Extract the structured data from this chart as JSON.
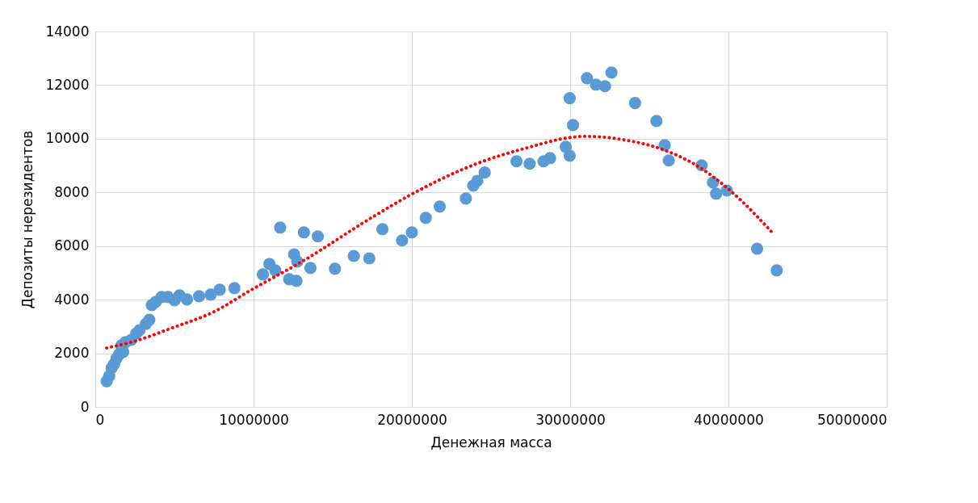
{
  "chart_data": {
    "type": "scatter",
    "xlabel": "Денежная масса",
    "ylabel": "Депозиты нерезидентов",
    "xlim": [
      0,
      50000000
    ],
    "xticks": [
      0,
      10000000,
      20000000,
      30000000,
      40000000,
      50000000
    ],
    "ylim": [
      0,
      14000
    ],
    "yticks": [
      0,
      2000,
      4000,
      6000,
      8000,
      10000,
      12000,
      14000
    ],
    "grid": true,
    "marker": "circle",
    "series": [
      {
        "color": "#5b9bd5",
        "x": [
          720000,
          880000,
          1030000,
          1190000,
          1340000,
          1500000,
          1760000,
          1650000,
          1900000,
          2270000,
          2580000,
          2790000,
          3200000,
          3410000,
          3570000,
          3820000,
          4190000,
          4600000,
          5010000,
          5320000,
          5790000,
          6560000,
          7290000,
          7860000,
          8790000,
          10590000,
          11000000,
          11370000,
          11680000,
          12250000,
          12710000,
          12560000,
          12760000,
          13180000,
          13590000,
          14060000,
          15140000,
          16330000,
          17310000,
          18140000,
          19380000,
          20000000,
          20880000,
          21760000,
          23410000,
          23880000,
          24130000,
          24600000,
          26610000,
          27440000,
          28320000,
          28730000,
          29720000,
          29970000,
          29970000,
          30180000,
          31060000,
          31630000,
          32200000,
          32610000,
          34100000,
          35450000,
          35970000,
          36230000,
          38300000,
          39020000,
          39220000,
          39900000,
          41810000,
          43050000
        ],
        "values": [
          960,
          1150,
          1450,
          1600,
          1810,
          1960,
          2050,
          2290,
          2410,
          2500,
          2740,
          2860,
          3100,
          3250,
          3800,
          3920,
          4100,
          4100,
          3980,
          4160,
          4010,
          4130,
          4190,
          4370,
          4430,
          4940,
          5330,
          5090,
          6690,
          4760,
          4700,
          5690,
          5420,
          6510,
          5180,
          6360,
          5150,
          5630,
          5540,
          6630,
          6210,
          6510,
          7050,
          7470,
          7770,
          8250,
          8430,
          8740,
          9160,
          9070,
          9160,
          9280,
          9700,
          9370,
          11510,
          10510,
          12260,
          12020,
          11960,
          12470,
          11330,
          10660,
          9760,
          9190,
          9010,
          8370,
          7950,
          8070,
          5900,
          5090
        ]
      },
      {
        "type": "line",
        "color": "#ff0000",
        "line_style": "dotted",
        "marker": "none",
        "x": [
          720000,
          2430000,
          4860000,
          7500000,
          9870000,
          13000000,
          17600000,
          19950000,
          24000000,
          27500000,
          29800000,
          30960000,
          33600000,
          35800000,
          38300000,
          40050000,
          42900000
        ],
        "values": [
          2200,
          2440,
          2950,
          3550,
          4370,
          5400,
          7110,
          7920,
          9050,
          9700,
          10030,
          10090,
          9940,
          9610,
          8890,
          8100,
          6420
        ]
      }
    ]
  }
}
